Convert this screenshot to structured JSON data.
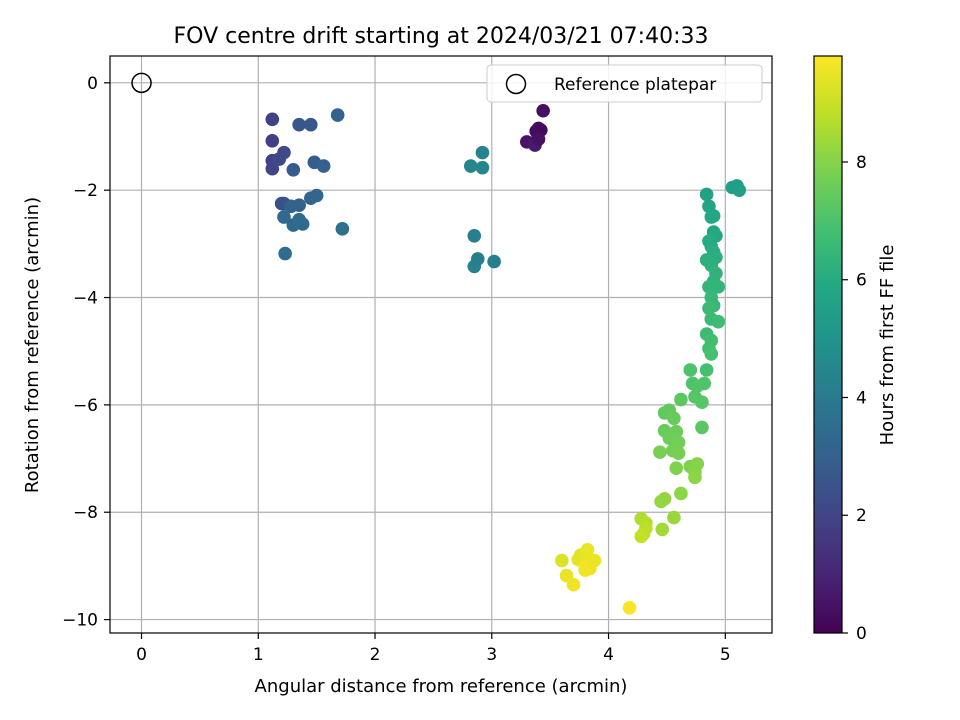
{
  "chart_data": {
    "type": "scatter",
    "title": "FOV centre drift starting at 2024/03/21 07:40:33",
    "xlabel": "Angular distance from reference (arcmin)",
    "ylabel": "Rotation from reference (arcmin)",
    "xlim": [
      -0.27,
      5.4
    ],
    "ylim": [
      -10.25,
      0.5
    ],
    "xticks": [
      0,
      1,
      2,
      3,
      4,
      5
    ],
    "xtick_labels": [
      "0",
      "1",
      "2",
      "3",
      "4",
      "5"
    ],
    "yticks": [
      0,
      -2,
      -4,
      -6,
      -8,
      -10
    ],
    "ytick_labels": [
      "0",
      "−2",
      "−4",
      "−6",
      "−8",
      "−10"
    ],
    "grid": true,
    "legend": {
      "position": "top-right",
      "entries": [
        "Reference platepar"
      ]
    },
    "reference": {
      "x": 0,
      "y": 0,
      "label": "Reference platepar"
    },
    "colorbar": {
      "label": "Hours from first FF file",
      "min": 0,
      "max": 9.8,
      "ticks": [
        0,
        2,
        4,
        6,
        8
      ],
      "tick_labels": [
        "0",
        "2",
        "4",
        "6",
        "8"
      ],
      "colormap": "viridis"
    },
    "points": [
      [
        3.44,
        -0.52,
        0.4
      ],
      [
        3.4,
        -0.85,
        0.3
      ],
      [
        3.38,
        -0.9,
        0.35
      ],
      [
        3.42,
        -0.88,
        0.25
      ],
      [
        3.3,
        -1.1,
        0.5
      ],
      [
        3.36,
        -1.12,
        0.6
      ],
      [
        3.37,
        -1.16,
        0.7
      ],
      [
        3.4,
        -1.05,
        0.45
      ],
      [
        1.12,
        -0.68,
        1.9
      ],
      [
        1.12,
        -1.08,
        1.8
      ],
      [
        1.12,
        -1.45,
        1.9
      ],
      [
        1.12,
        -1.6,
        2.0
      ],
      [
        1.18,
        -1.42,
        2.1
      ],
      [
        1.22,
        -1.3,
        2.2
      ],
      [
        1.2,
        -2.25,
        2.3
      ],
      [
        1.22,
        -2.25,
        2.4
      ],
      [
        1.35,
        -0.78,
        2.6
      ],
      [
        1.45,
        -0.78,
        2.7
      ],
      [
        1.3,
        -1.62,
        2.8
      ],
      [
        1.48,
        -1.48,
        2.9
      ],
      [
        1.56,
        -1.55,
        3.0
      ],
      [
        1.68,
        -0.6,
        3.1
      ],
      [
        1.28,
        -2.3,
        3.0
      ],
      [
        1.35,
        -2.28,
        3.1
      ],
      [
        1.45,
        -2.15,
        3.2
      ],
      [
        1.5,
        -2.1,
        3.2
      ],
      [
        1.22,
        -2.5,
        3.3
      ],
      [
        1.3,
        -2.65,
        3.3
      ],
      [
        1.35,
        -2.55,
        3.4
      ],
      [
        1.38,
        -2.63,
        3.4
      ],
      [
        1.23,
        -3.18,
        3.5
      ],
      [
        1.72,
        -2.72,
        3.6
      ],
      [
        2.82,
        -1.55,
        4.4
      ],
      [
        2.92,
        -1.3,
        4.3
      ],
      [
        2.92,
        -1.58,
        4.4
      ],
      [
        2.85,
        -2.85,
        4.1
      ],
      [
        2.85,
        -3.42,
        4.3
      ],
      [
        2.88,
        -3.28,
        4.2
      ],
      [
        3.02,
        -3.33,
        4.2
      ],
      [
        5.06,
        -1.95,
        5.5
      ],
      [
        5.1,
        -1.92,
        5.4
      ],
      [
        5.12,
        -2.0,
        5.5
      ],
      [
        4.84,
        -2.08,
        5.6
      ],
      [
        4.86,
        -2.3,
        5.7
      ],
      [
        4.9,
        -2.48,
        5.8
      ],
      [
        4.88,
        -2.5,
        5.8
      ],
      [
        4.9,
        -2.78,
        5.9
      ],
      [
        4.92,
        -2.85,
        5.9
      ],
      [
        4.86,
        -2.95,
        6.0
      ],
      [
        4.88,
        -3.05,
        6.0
      ],
      [
        4.9,
        -3.15,
        6.1
      ],
      [
        4.92,
        -3.25,
        6.1
      ],
      [
        4.84,
        -3.3,
        6.2
      ],
      [
        4.88,
        -3.4,
        6.2
      ],
      [
        4.92,
        -3.55,
        6.3
      ],
      [
        4.9,
        -3.7,
        6.3
      ],
      [
        4.86,
        -3.8,
        6.4
      ],
      [
        4.94,
        -3.8,
        6.4
      ],
      [
        4.88,
        -4.0,
        6.5
      ],
      [
        4.9,
        -4.15,
        6.5
      ],
      [
        4.86,
        -4.2,
        6.6
      ],
      [
        4.88,
        -4.4,
        6.6
      ],
      [
        4.94,
        -4.45,
        6.7
      ],
      [
        4.84,
        -4.68,
        6.7
      ],
      [
        4.88,
        -4.8,
        6.8
      ],
      [
        4.86,
        -4.95,
        6.8
      ],
      [
        4.88,
        -5.05,
        6.9
      ],
      [
        4.84,
        -5.35,
        6.9
      ],
      [
        4.7,
        -5.35,
        7.0
      ],
      [
        4.72,
        -5.6,
        7.0
      ],
      [
        4.76,
        -5.65,
        7.1
      ],
      [
        4.82,
        -5.6,
        7.1
      ],
      [
        4.74,
        -5.85,
        7.2
      ],
      [
        4.8,
        -5.95,
        7.2
      ],
      [
        4.62,
        -5.9,
        7.3
      ],
      [
        4.8,
        -6.42,
        7.3
      ],
      [
        4.48,
        -6.15,
        7.4
      ],
      [
        4.52,
        -6.1,
        7.4
      ],
      [
        4.56,
        -6.25,
        7.5
      ],
      [
        4.48,
        -6.48,
        7.5
      ],
      [
        4.58,
        -6.5,
        7.6
      ],
      [
        4.52,
        -6.62,
        7.6
      ],
      [
        4.6,
        -6.7,
        7.7
      ],
      [
        4.55,
        -6.85,
        7.7
      ],
      [
        4.6,
        -6.9,
        7.8
      ],
      [
        4.44,
        -6.88,
        7.8
      ],
      [
        4.58,
        -7.18,
        7.9
      ],
      [
        4.7,
        -7.15,
        7.9
      ],
      [
        4.76,
        -7.1,
        8.0
      ],
      [
        4.74,
        -7.25,
        8.0
      ],
      [
        4.74,
        -7.35,
        8.1
      ],
      [
        4.62,
        -7.65,
        8.1
      ],
      [
        4.48,
        -7.75,
        8.2
      ],
      [
        4.45,
        -7.8,
        8.2
      ],
      [
        4.56,
        -8.1,
        8.3
      ],
      [
        4.46,
        -8.32,
        8.4
      ],
      [
        4.28,
        -8.12,
        8.6
      ],
      [
        4.32,
        -8.2,
        8.7
      ],
      [
        4.32,
        -8.3,
        8.8
      ],
      [
        4.3,
        -8.4,
        8.8
      ],
      [
        4.28,
        -8.45,
        8.9
      ],
      [
        3.6,
        -8.9,
        9.3
      ],
      [
        3.74,
        -8.88,
        9.4
      ],
      [
        3.76,
        -8.8,
        9.4
      ],
      [
        3.82,
        -8.7,
        9.5
      ],
      [
        3.86,
        -8.92,
        9.5
      ],
      [
        3.8,
        -9.0,
        9.6
      ],
      [
        3.84,
        -9.05,
        9.6
      ],
      [
        3.88,
        -8.9,
        9.5
      ],
      [
        3.64,
        -9.18,
        9.5
      ],
      [
        3.7,
        -9.35,
        9.6
      ],
      [
        3.8,
        -9.08,
        9.6
      ],
      [
        4.18,
        -9.78,
        9.7
      ]
    ]
  }
}
